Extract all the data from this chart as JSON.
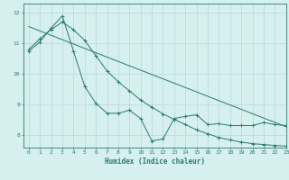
{
  "xlabel": "Humidex (Indice chaleur)",
  "xlim": [
    -0.5,
    23
  ],
  "ylim": [
    7.6,
    12.3
  ],
  "yticks": [
    8,
    9,
    10,
    11,
    12
  ],
  "xticks": [
    0,
    1,
    2,
    3,
    4,
    5,
    6,
    7,
    8,
    9,
    10,
    11,
    12,
    13,
    14,
    15,
    16,
    17,
    18,
    19,
    20,
    21,
    22,
    23
  ],
  "line_color": "#2a7a6a",
  "bg_color": "#d6efef",
  "grid_color": "#b8d8d8",
  "line1_x": [
    0,
    1,
    2,
    3,
    4,
    5,
    6,
    7,
    8,
    9,
    10,
    11,
    12,
    13,
    14,
    15,
    16,
    17,
    18,
    19,
    20,
    21,
    22,
    23
  ],
  "line1_y": [
    10.75,
    11.05,
    11.5,
    11.9,
    10.75,
    9.6,
    9.05,
    8.72,
    8.72,
    8.82,
    8.55,
    7.82,
    7.88,
    8.55,
    8.62,
    8.67,
    8.35,
    8.38,
    8.32,
    8.32,
    8.32,
    8.42,
    8.35,
    8.32
  ],
  "line2_x": [
    0,
    1,
    2,
    3,
    4,
    5,
    6,
    7,
    8,
    9,
    10,
    11,
    12,
    13,
    14,
    15,
    16,
    17,
    18,
    19,
    20,
    21,
    22,
    23
  ],
  "line2_y": [
    10.8,
    11.15,
    11.45,
    11.7,
    11.45,
    11.1,
    10.6,
    10.1,
    9.75,
    9.45,
    9.15,
    8.92,
    8.7,
    8.52,
    8.35,
    8.18,
    8.05,
    7.93,
    7.85,
    7.78,
    7.73,
    7.7,
    7.67,
    7.65
  ],
  "line3_x": [
    0,
    23
  ],
  "line3_y": [
    11.55,
    8.28
  ]
}
